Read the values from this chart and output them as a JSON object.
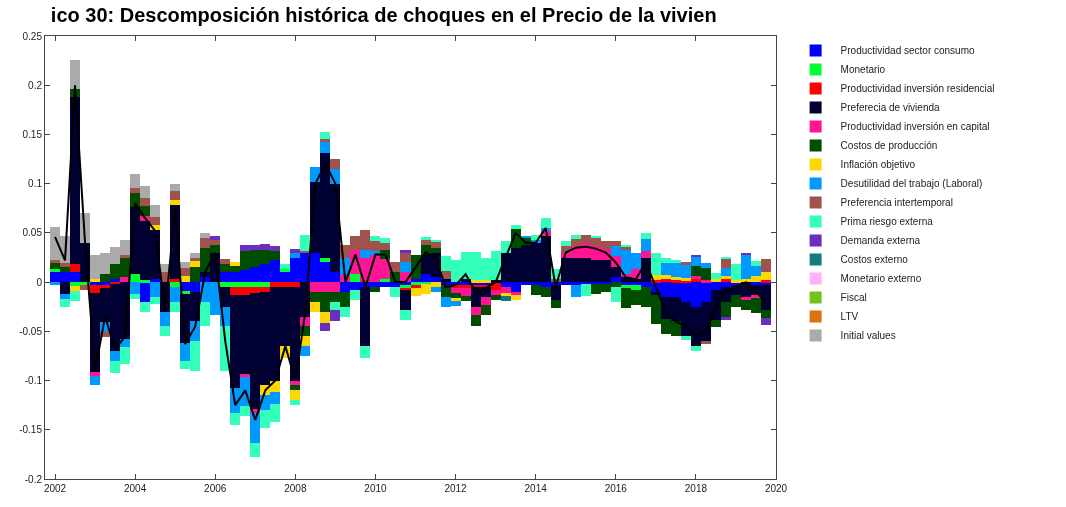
{
  "chart_data": {
    "type": "bar",
    "stacked": true,
    "title": "ico 30: Descomposición histórica de choques en el Precio de la vivien",
    "x": [
      2002,
      2002.25,
      2002.5,
      2002.75,
      2003,
      2003.25,
      2003.5,
      2003.75,
      2004,
      2004.25,
      2004.5,
      2004.75,
      2005,
      2005.25,
      2005.5,
      2005.75,
      2006,
      2006.25,
      2006.5,
      2006.75,
      2007,
      2007.25,
      2007.5,
      2007.75,
      2008,
      2008.25,
      2008.5,
      2008.75,
      2009,
      2009.25,
      2009.5,
      2009.75,
      2010,
      2010.25,
      2010.5,
      2010.75,
      2011,
      2011.25,
      2011.5,
      2011.75,
      2012,
      2012.25,
      2012.5,
      2012.75,
      2013,
      2013.25,
      2013.5,
      2013.75,
      2014,
      2014.25,
      2014.5,
      2014.75,
      2015,
      2015.25,
      2015.5,
      2015.75,
      2016,
      2016.25,
      2016.5,
      2016.75,
      2017,
      2017.25,
      2017.5,
      2017.75,
      2018,
      2018.25,
      2018.5,
      2018.75,
      2019,
      2019.25,
      2019.5,
      2019.75
    ],
    "series": [
      {
        "name": "Productividad sector consumo",
        "color": "#0000ff",
        "values": [
          0.01,
          0.01,
          0.01,
          0,
          -0.003,
          -0.003,
          0.003,
          0,
          0,
          -0.02,
          0.003,
          0,
          0,
          -0.01,
          -0.01,
          0.005,
          0,
          0.01,
          0.01,
          0.012,
          0.015,
          0.018,
          0.022,
          0.01,
          0.025,
          0.03,
          0.03,
          0.02,
          0.01,
          -0.01,
          -0.008,
          -0.005,
          -0.005,
          -0.005,
          -0.005,
          -0.003,
          0.003,
          0.008,
          0.005,
          -0.003,
          -0.003,
          -0.003,
          -0.003,
          -0.003,
          null,
          -0.005,
          -0.01,
          -0.003,
          -0.003,
          -0.005,
          -0.003,
          -0.003,
          -0.003,
          -0.002,
          -0.002,
          -0.002,
          0.005,
          -0.003,
          -0.003,
          -0.005,
          -0.01,
          -0.015,
          -0.015,
          -0.02,
          -0.025,
          -0.02,
          -0.008,
          -0.005,
          -0.003,
          null,
          -0.003,
          -0.003
        ]
      },
      {
        "name": "Monetario",
        "color": "#00ff33",
        "values": [
          0.003,
          0,
          -0.004,
          -0.003,
          0,
          0,
          0,
          0,
          0.008,
          0.002,
          0,
          0,
          -0.005,
          -0.002,
          0,
          0,
          0,
          -0.005,
          -0.005,
          -0.005,
          -0.005,
          -0.005,
          0,
          0.003,
          0,
          0,
          0,
          0.004,
          0,
          0,
          0.008,
          0,
          0,
          0.003,
          0,
          -0.003,
          -0.003,
          -0.002,
          0,
          0,
          0,
          0,
          0,
          0,
          0,
          0,
          0,
          0,
          0,
          0,
          0,
          0,
          0,
          0,
          0,
          0,
          0,
          -0.003,
          -0.005,
          0,
          0,
          0,
          0,
          0,
          0,
          0,
          0,
          0,
          0,
          0,
          0,
          0
        ]
      },
      {
        "name": "Productividad inversión residencial",
        "color": "#ff0000",
        "values": [
          0,
          0,
          0.008,
          0,
          -0.008,
          -0.003,
          -0.002,
          0,
          0,
          0,
          0,
          0,
          0.003,
          0,
          0,
          0,
          0,
          0,
          -0.008,
          -0.008,
          -0.006,
          -0.005,
          -0.005,
          -0.005,
          -0.005,
          0,
          0,
          0,
          0,
          0,
          0,
          0,
          0,
          0,
          0,
          -0.002,
          -0.003,
          0,
          0,
          0,
          -0.003,
          -0.003,
          -0.002,
          -0.002,
          -0.008,
          0,
          0,
          0,
          0,
          0,
          0,
          0,
          0,
          0,
          0,
          0,
          0,
          0,
          0,
          0,
          0.002,
          0.003,
          0.002,
          0.002,
          0.003,
          0,
          0,
          0.003,
          0,
          0,
          0,
          0.002
        ]
      },
      {
        "name": "Preferecia de vivienda",
        "color": "#000033",
        "values": [
          0,
          -0.012,
          0.17,
          0.04,
          -0.08,
          -0.035,
          -0.068,
          -0.058,
          0.068,
          0.06,
          0.05,
          -0.03,
          0.075,
          -0.05,
          -0.03,
          0.005,
          0.03,
          -0.02,
          -0.095,
          -0.08,
          -0.118,
          -0.095,
          -0.095,
          -0.06,
          -0.095,
          -0.035,
          0.072,
          0.107,
          0.09,
          0,
          0,
          -0.06,
          0,
          0,
          0,
          -0.02,
          0,
          0.02,
          0.025,
          0.003,
          0,
          0.003,
          -0.02,
          -0.01,
          0.002,
          0.03,
          0.035,
          0.038,
          0.04,
          0.047,
          -0.015,
          0.025,
          0.025,
          0.025,
          0.022,
          0.022,
          0.01,
          0.005,
          0.003,
          0.025,
          -0.003,
          -0.022,
          -0.025,
          -0.035,
          -0.04,
          -0.04,
          -0.03,
          -0.015,
          -0.01,
          -0.015,
          -0.01,
          -0.025
        ]
      },
      {
        "name": "Productividad inversión en capital",
        "color": "#ff1493",
        "values": [
          0,
          0,
          0,
          0,
          -0.004,
          0,
          0,
          0.005,
          0,
          0.005,
          0,
          0,
          0,
          0,
          0,
          0,
          0,
          0,
          0,
          -0.003,
          -0.004,
          0,
          0,
          0,
          -0.005,
          -0.01,
          -0.01,
          -0.01,
          -0.01,
          0.007,
          0.025,
          0.025,
          0.028,
          0.02,
          0,
          0.01,
          0,
          0,
          0,
          0,
          -0.005,
          -0.008,
          -0.008,
          -0.008,
          -0.005,
          -0.006,
          -0.003,
          0,
          0,
          0.005,
          0,
          0.005,
          0.012,
          0.015,
          0.015,
          0.012,
          0.012,
          0.003,
          0.01,
          0.007,
          0,
          0,
          0,
          0,
          0.003,
          0.002,
          0,
          0,
          0,
          -0.003,
          -0.003,
          0
        ]
      },
      {
        "name": "Costos de producción",
        "color": "#004d00",
        "values": [
          0.006,
          0.005,
          0.008,
          0,
          0,
          0.008,
          0.015,
          0.02,
          0.015,
          0.01,
          0,
          0,
          0,
          0,
          0.015,
          0.025,
          0.008,
          0.008,
          0.006,
          0.02,
          0.018,
          0.015,
          0.01,
          0,
          -0.005,
          -0.01,
          -0.01,
          -0.02,
          -0.01,
          -0.015,
          0,
          0,
          -0.005,
          0.01,
          0.01,
          0,
          0.025,
          0.01,
          0.005,
          -0.012,
          -0.005,
          -0.005,
          -0.012,
          -0.01,
          -0.005,
          0,
          0.019,
          0.007,
          -0.01,
          -0.01,
          -0.008,
          0,
          0,
          0,
          -0.01,
          -0.008,
          -0.005,
          -0.02,
          -0.015,
          -0.02,
          -0.03,
          -0.016,
          -0.015,
          0,
          0.01,
          0.012,
          -0.008,
          -0.015,
          -0.012,
          -0.01,
          -0.015,
          -0.008
        ]
      },
      {
        "name": "Inflación objetivo",
        "color": "#ffd700",
        "values": [
          0,
          0,
          -0.005,
          0,
          0.003,
          0,
          0,
          0,
          0,
          0,
          0.005,
          0,
          0.005,
          0.006,
          0.006,
          0,
          0,
          0,
          0.004,
          0,
          0,
          -0.01,
          -0.012,
          -0.012,
          -0.01,
          -0.01,
          -0.01,
          -0.012,
          0,
          0,
          0,
          0,
          0,
          0,
          0,
          0,
          -0.008,
          -0.01,
          -0.005,
          0,
          -0.003,
          0,
          0.002,
          0.002,
          0,
          -0.003,
          -0.005,
          0,
          0,
          0,
          0,
          0,
          0,
          0,
          0,
          0,
          0,
          0,
          0,
          0,
          0.005,
          0.004,
          0.003,
          0.002,
          0,
          0,
          0.003,
          0.003,
          0.002,
          0.003,
          0.006,
          0.008
        ]
      },
      {
        "name": "Desutilidad del trabajo (Laboral)",
        "color": "#0099ff",
        "values": [
          -0.003,
          -0.005,
          0,
          0,
          -0.01,
          -0.01,
          -0.01,
          -0.008,
          -0.012,
          0,
          -0.015,
          -0.015,
          -0.015,
          -0.018,
          -0.02,
          -0.02,
          -0.033,
          -0.02,
          -0.025,
          -0.03,
          -0.03,
          -0.015,
          -0.012,
          0,
          0.005,
          -0.01,
          0.015,
          0.011,
          0.015,
          0.018,
          0,
          0.008,
          0.004,
          0,
          0,
          0.01,
          0,
          0,
          -0.005,
          -0.01,
          -0.005,
          0,
          0,
          0,
          0,
          0,
          0,
          0.002,
          0.003,
          0.003,
          0,
          0,
          -0.012,
          0,
          0,
          0,
          0.01,
          0.025,
          0.017,
          0.012,
          0,
          0.012,
          0.015,
          0.013,
          0.01,
          0.005,
          0,
          0.008,
          0,
          0.025,
          0.01,
          0
        ]
      },
      {
        "name": "Preferencia intertemporal",
        "color": "#a0524d",
        "values": [
          0.003,
          0.004,
          0,
          -0.005,
          0,
          -0.005,
          0,
          0.003,
          0.005,
          0.008,
          0.008,
          0.01,
          0.01,
          0.008,
          0.004,
          0.01,
          0.005,
          0.005,
          0,
          0,
          0,
          0,
          0,
          0,
          0,
          0.002,
          0,
          0.003,
          0.01,
          0.013,
          0.014,
          0.02,
          0.01,
          0.007,
          0.01,
          0.01,
          0,
          0.005,
          0.006,
          0.008,
          0,
          0,
          0,
          0,
          0,
          0,
          0,
          0,
          0,
          0,
          0.003,
          0.007,
          0.007,
          0.008,
          0.008,
          0.008,
          0.005,
          0.003,
          0,
          0,
          0,
          0,
          0,
          0.003,
          0,
          -0.003,
          0,
          0.01,
          0,
          0,
          0,
          0.013
        ]
      },
      {
        "name": "Prima riesgo externa",
        "color": "#33ffbb",
        "values": [
          0,
          -0.008,
          -0.01,
          0,
          0,
          0,
          -0.012,
          -0.017,
          -0.005,
          -0.01,
          -0.007,
          -0.01,
          -0.01,
          -0.008,
          -0.03,
          -0.025,
          0,
          -0.045,
          -0.012,
          -0.01,
          -0.015,
          -0.018,
          -0.018,
          0.005,
          -0.005,
          0.016,
          0,
          0.007,
          -0.008,
          -0.01,
          -0.01,
          -0.012,
          0.005,
          0.005,
          -0.01,
          -0.01,
          0,
          0.003,
          0.002,
          0.016,
          0.022,
          0.028,
          0.029,
          0.023,
          0.03,
          0.012,
          0.004,
          0,
          0.005,
          0.01,
          0.01,
          0.005,
          0.004,
          -0.012,
          0.002,
          0,
          -0.015,
          0.002,
          0,
          0.006,
          0.023,
          0.006,
          0.002,
          -0.004,
          -0.005,
          0,
          0.006,
          0.002,
          0.016,
          0,
          0.005,
          0
        ]
      },
      {
        "name": "Demanda externa",
        "color": "#6a2fc0",
        "values": [
          0,
          0,
          0,
          0,
          0,
          0,
          0,
          0,
          0,
          0,
          0,
          0,
          0,
          0,
          0,
          0,
          0.004,
          0,
          0,
          0.006,
          0.005,
          0.006,
          0.005,
          0,
          0.004,
          0,
          0,
          -0.008,
          -0.012,
          0,
          0,
          0,
          0,
          0,
          0,
          0.003,
          0,
          0,
          0,
          0,
          0,
          0,
          0,
          0,
          0,
          0,
          0,
          0,
          0,
          0,
          0,
          0,
          0,
          0,
          0,
          0,
          0,
          0,
          0,
          0,
          0,
          0,
          0,
          0,
          0.002,
          0,
          0,
          -0.003,
          0,
          0.002,
          0,
          -0.008
        ]
      },
      {
        "name": "Costos externo",
        "color": "#137a7f",
        "values": [
          0,
          0,
          0,
          0,
          0,
          0,
          0,
          0,
          0,
          0,
          0,
          0,
          0,
          0,
          0,
          0,
          0,
          0,
          0,
          0,
          0,
          0,
          0,
          0,
          0,
          0,
          0,
          0,
          0,
          0,
          0,
          0,
          0,
          0,
          0,
          0,
          0,
          0,
          0,
          0,
          0,
          0,
          0,
          0,
          0,
          -0.005,
          0,
          0,
          0,
          0,
          0,
          0,
          0,
          0,
          0,
          0,
          0,
          0,
          0,
          0,
          0,
          0,
          0,
          0,
          0,
          0,
          0,
          0,
          0,
          0,
          0,
          0
        ]
      },
      {
        "name": "Monetario externo",
        "color": "#ffb3f5",
        "values": [
          0,
          0,
          0,
          0,
          0,
          0,
          0,
          0,
          0,
          0,
          0,
          0,
          0,
          0,
          0,
          0,
          0,
          0,
          0,
          0,
          0,
          0,
          0,
          0,
          0,
          0,
          0,
          0,
          0,
          0,
          0,
          0,
          0,
          0,
          0,
          0,
          0,
          0,
          0,
          0,
          0,
          0,
          0,
          0,
          0,
          0,
          0,
          0,
          0,
          0,
          0,
          0,
          0,
          0,
          0,
          0,
          0,
          0,
          0,
          0,
          0,
          0,
          0,
          0,
          0,
          0,
          0,
          0,
          0,
          0,
          0,
          0
        ]
      },
      {
        "name": "Fiscal",
        "color": "#77c01f",
        "values": [
          0,
          0,
          0,
          0,
          0,
          0,
          0,
          0,
          0,
          0,
          0,
          0,
          0,
          0,
          0,
          0,
          0,
          0,
          0,
          0,
          0,
          0,
          0,
          0,
          0,
          0,
          0,
          0,
          0,
          0,
          0,
          0,
          0,
          0,
          0,
          0,
          0,
          0,
          0,
          0,
          0,
          0,
          0,
          0,
          0,
          0,
          0,
          0,
          0,
          0,
          0,
          0,
          0,
          0,
          0,
          0,
          0,
          0,
          0,
          0,
          0,
          0,
          0,
          0,
          0,
          0,
          0,
          0,
          0,
          0,
          0,
          0
        ]
      },
      {
        "name": "LTV",
        "color": "#d9730d",
        "values": [
          0,
          0,
          0,
          0,
          0,
          0,
          0,
          0,
          0,
          0,
          0,
          0,
          0,
          0,
          0,
          0,
          0,
          0,
          0,
          0,
          0,
          0,
          0,
          0,
          0,
          0,
          0,
          0,
          0,
          0,
          0,
          0,
          0,
          0,
          0,
          0,
          0,
          0,
          0,
          0,
          0,
          0,
          0,
          0,
          0,
          0,
          0,
          0,
          0,
          0,
          0,
          0,
          0,
          0,
          0,
          0,
          0,
          0,
          0,
          0,
          0,
          0,
          0,
          0,
          0,
          0,
          0,
          0,
          0,
          0,
          0,
          0
        ]
      },
      {
        "name": "Initial values",
        "color": "#aaaaaa",
        "values": [
          0.034,
          0.028,
          0.03,
          0.03,
          0.025,
          0.022,
          0.018,
          0.015,
          0.014,
          0.013,
          0.012,
          0.008,
          0.007,
          0.006,
          0.005,
          0.005,
          0,
          0,
          0,
          0,
          0,
          0,
          0,
          0,
          0,
          0,
          0,
          0,
          0,
          0,
          0,
          0,
          0,
          0,
          0,
          0,
          0,
          0,
          0,
          0,
          0,
          0,
          0,
          0,
          0,
          0,
          0,
          0,
          0,
          0,
          0,
          0,
          0,
          0,
          0,
          0,
          0,
          0,
          0,
          0,
          0,
          0,
          0,
          0,
          0,
          0,
          0,
          0,
          0,
          0,
          0,
          0
        ]
      },
      {
        "type": "line",
        "color": "#000000",
        "values": [
          0.046,
          0.022,
          0.2,
          0.04,
          -0.09,
          -0.035,
          -0.068,
          -0.055,
          0.08,
          0.065,
          0.052,
          -0.03,
          0.075,
          -0.063,
          -0.045,
          0.01,
          0.03,
          -0.06,
          -0.125,
          -0.11,
          -0.14,
          -0.11,
          -0.1,
          -0.065,
          -0.1,
          -0.03,
          0.1,
          0.12,
          0.1,
          0,
          0.028,
          -0.005,
          0.028,
          0.028,
          0,
          0,
          0.015,
          0.03,
          0.025,
          -0.005,
          -0.003,
          0.008,
          -0.01,
          -0.006,
          0,
          0.025,
          0.05,
          0.04,
          0.04,
          0.055,
          -0.005,
          0.03,
          0.035,
          0.036,
          0.034,
          0.03,
          0.02,
          0.005,
          0.003,
          0.02,
          -0.005,
          -0.03,
          -0.04,
          -0.045,
          -0.055,
          -0.05,
          -0.025,
          -0.01,
          -0.005,
          0,
          -0.01,
          -0.02
        ]
      }
    ],
    "xlim": [
      2001.75,
      2020
    ],
    "xticks": [
      2002,
      2004,
      2006,
      2008,
      2010,
      2012,
      2014,
      2016,
      2018,
      2020
    ],
    "ylim": [
      -0.2,
      0.25
    ],
    "yticks": [
      -0.2,
      -0.15,
      -0.1,
      -0.05,
      0,
      0.05,
      0.1,
      0.15,
      0.2,
      0.25
    ],
    "legend": "right"
  }
}
